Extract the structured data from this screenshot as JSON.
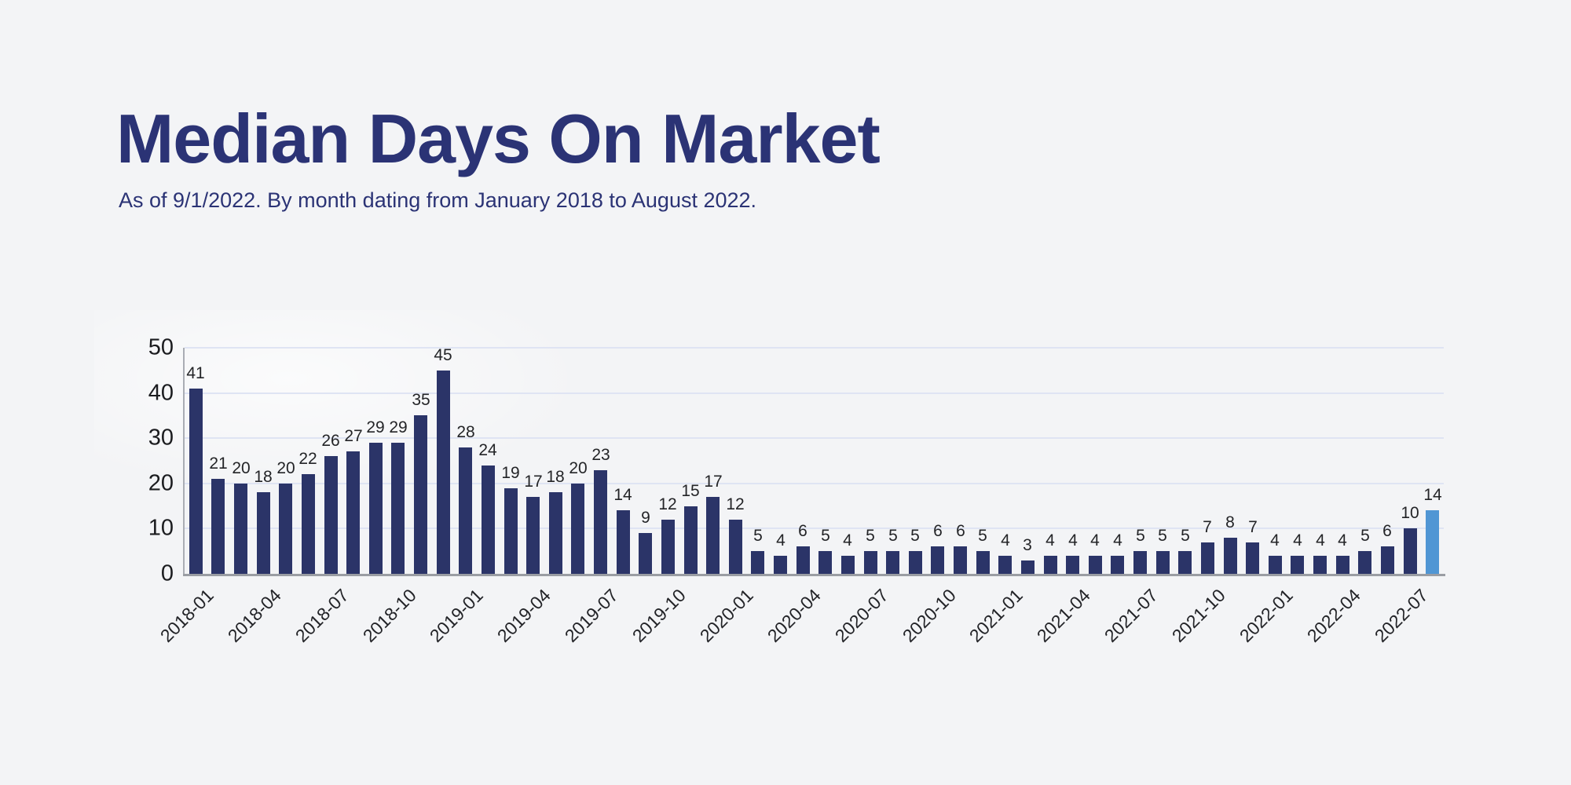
{
  "page": {
    "background_color": "#f3f4f6"
  },
  "header": {
    "title": "Median Days On Market",
    "subtitle": "As of 9/1/2022. By month dating from January 2018 to August 2022.",
    "text_color": "#2b3375"
  },
  "chart_data": {
    "type": "bar",
    "title": "Median Days On Market",
    "subtitle": "As of 9/1/2022. By month dating from January 2018 to August 2022.",
    "ylabel": "",
    "xlabel": "",
    "categories": [
      "2018-01",
      "2018-02",
      "2018-03",
      "2018-04",
      "2018-05",
      "2018-06",
      "2018-07",
      "2018-08",
      "2018-09",
      "2018-10",
      "2018-11",
      "2018-12",
      "2019-01",
      "2019-02",
      "2019-03",
      "2019-04",
      "2019-05",
      "2019-06",
      "2019-07",
      "2019-08",
      "2019-09",
      "2019-10",
      "2019-11",
      "2019-12",
      "2020-01",
      "2020-02",
      "2020-03",
      "2020-04",
      "2020-05",
      "2020-06",
      "2020-07",
      "2020-08",
      "2020-09",
      "2020-10",
      "2020-11",
      "2020-12",
      "2021-01",
      "2021-02",
      "2021-03",
      "2021-04",
      "2021-05",
      "2021-06",
      "2021-07",
      "2021-08",
      "2021-09",
      "2021-10",
      "2021-11",
      "2021-12",
      "2022-01",
      "2022-02",
      "2022-03",
      "2022-04",
      "2022-05",
      "2022-06",
      "2022-07",
      "2022-08"
    ],
    "values": [
      41,
      21,
      20,
      18,
      20,
      22,
      26,
      27,
      29,
      29,
      35,
      45,
      28,
      24,
      19,
      17,
      18,
      20,
      23,
      14,
      9,
      12,
      15,
      17,
      12,
      5,
      4,
      6,
      5,
      4,
      5,
      5,
      5,
      6,
      6,
      5,
      4,
      3,
      4,
      4,
      4,
      4,
      5,
      5,
      5,
      7,
      8,
      7,
      4,
      4,
      4,
      4,
      5,
      6,
      10,
      14
    ],
    "value_labels_shown": true,
    "ylim": [
      0,
      50
    ],
    "yticks": [
      0,
      10,
      20,
      30,
      40,
      50
    ],
    "xtick_step": 3,
    "xtick_labels_shown": [
      "2018-01",
      "2018-04",
      "2018-07",
      "2018-10",
      "2019-01",
      "2019-04",
      "2019-07",
      "2019-10",
      "2020-01",
      "2020-04",
      "2020-07",
      "2020-10",
      "2021-01",
      "2021-04",
      "2021-07",
      "2021-10",
      "2022-01",
      "2022-04",
      "2022-07"
    ],
    "grid": "horizontal",
    "legend": "none",
    "bar_color": "#2b3468",
    "highlight_color": "#5096d4",
    "highlight_index": 55,
    "gridline_color": "#dfe4f3",
    "axis_line_color": "#9a9da3"
  }
}
